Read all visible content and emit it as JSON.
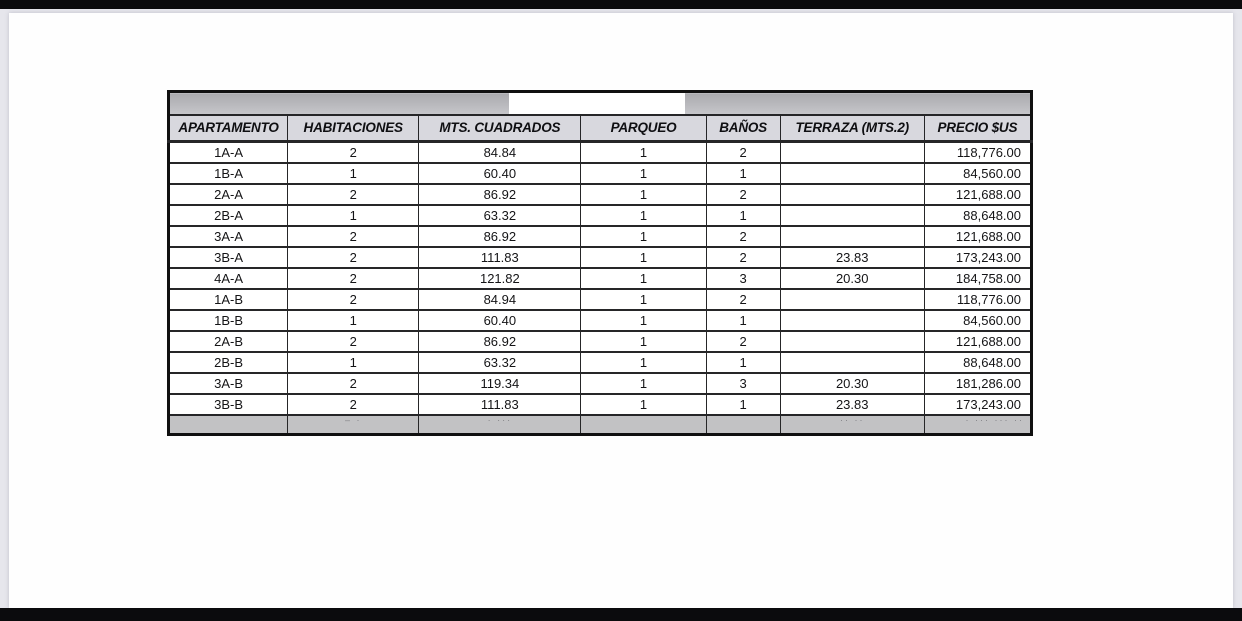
{
  "document": {
    "kind_note": "scanned apartment price list page",
    "redacted_title_present": "true"
  },
  "colors": {
    "letterbox": "#0b0b0d",
    "page_bg": "#fefefe",
    "band_gray": "#b4b4b8",
    "header_bg": "#d8d8de",
    "grid": "#262628",
    "ghost_row_bg": "#c2c2c4"
  },
  "table": {
    "columns": [
      {
        "key": "apartamento",
        "label": "APARTAMENTO"
      },
      {
        "key": "habitaciones",
        "label": "HABITACIONES"
      },
      {
        "key": "mts_cuadrados",
        "label": "MTS. CUADRADOS"
      },
      {
        "key": "parqueo",
        "label": "PARQUEO"
      },
      {
        "key": "banos",
        "label": "BAÑOS"
      },
      {
        "key": "terraza",
        "label": "TERRAZA (MTS.2)"
      },
      {
        "key": "precio",
        "label": "PRECIO $US"
      }
    ],
    "rows": [
      [
        "1A-A",
        "2",
        "84.84",
        "1",
        "2",
        "",
        "118,776.00"
      ],
      [
        "1B-A",
        "1",
        "60.40",
        "1",
        "1",
        "",
        "84,560.00"
      ],
      [
        "2A-A",
        "2",
        "86.92",
        "1",
        "2",
        "",
        "121,688.00"
      ],
      [
        "2B-A",
        "1",
        "63.32",
        "1",
        "1",
        "",
        "88,648.00"
      ],
      [
        "3A-A",
        "2",
        "86.92",
        "1",
        "2",
        "",
        "121,688.00"
      ],
      [
        "3B-A",
        "2",
        "111.83",
        "1",
        "2",
        "23.83",
        "173,243.00"
      ],
      [
        "4A-A",
        "2",
        "121.82",
        "1",
        "3",
        "20.30",
        "184,758.00"
      ],
      [
        "1A-B",
        "2",
        "84.94",
        "1",
        "2",
        "",
        "118,776.00"
      ],
      [
        "1B-B",
        "1",
        "60.40",
        "1",
        "1",
        "",
        "84,560.00"
      ],
      [
        "2A-B",
        "2",
        "86.92",
        "1",
        "2",
        "",
        "121,688.00"
      ],
      [
        "2B-B",
        "1",
        "63.32",
        "1",
        "1",
        "",
        "88,648.00"
      ],
      [
        "3A-B",
        "2",
        "119.34",
        "1",
        "3",
        "20.30",
        "181,286.00"
      ],
      [
        "3B-B",
        "2",
        "111.83",
        "1",
        "1",
        "23.83",
        "173,243.00"
      ]
    ],
    "totals_row_clipped": [
      "",
      "– ·",
      "· ···",
      "",
      "",
      "·· ··",
      "· ··· ··· ··"
    ]
  }
}
